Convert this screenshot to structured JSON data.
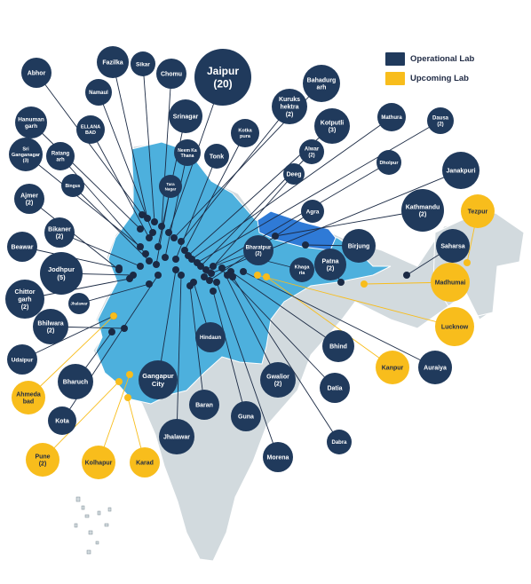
{
  "legend": {
    "operational": {
      "label": "Operational Lab",
      "color": "#203a5c"
    },
    "upcoming": {
      "label": "Upcoming Lab",
      "color": "#f8bd1c"
    }
  },
  "colors": {
    "region_highlight": "#4db0dd",
    "region_alt": "#2f7ad6",
    "land": "#d2dade",
    "land_border": "#ffffff",
    "leader_line": "#1b2a44",
    "dot": "#1b2a44"
  },
  "labs": [
    {
      "id": "abhor",
      "status": "operational",
      "lines": [
        "Abhor"
      ]
    },
    {
      "id": "fazilka",
      "status": "operational",
      "lines": [
        "Fazilka"
      ]
    },
    {
      "id": "sikar",
      "status": "operational",
      "lines": [
        "Sikar"
      ]
    },
    {
      "id": "chomu",
      "status": "operational",
      "lines": [
        "Chomu"
      ]
    },
    {
      "id": "jaipur",
      "status": "operational",
      "lines": [
        "Jaipur",
        "(20)"
      ]
    },
    {
      "id": "bahadurgarh",
      "status": "operational",
      "lines": [
        "Bahadurg",
        "arh"
      ]
    },
    {
      "id": "namaul",
      "status": "operational",
      "lines": [
        "Namaul"
      ]
    },
    {
      "id": "kurukshetra",
      "status": "operational",
      "lines": [
        "Kuruks",
        "hektra",
        "(2)"
      ]
    },
    {
      "id": "hanumangarh",
      "status": "operational",
      "lines": [
        "Hanuman",
        "garh"
      ]
    },
    {
      "id": "ellanabad",
      "status": "operational",
      "lines": [
        "ELLANA",
        "BAD"
      ]
    },
    {
      "id": "srinagar",
      "status": "operational",
      "lines": [
        "Srinagar"
      ]
    },
    {
      "id": "kotkapura",
      "status": "operational",
      "lines": [
        "Kotka",
        "pura"
      ]
    },
    {
      "id": "kotputli",
      "status": "operational",
      "lines": [
        "Kotputli",
        "(3)"
      ]
    },
    {
      "id": "mathura",
      "status": "operational",
      "lines": [
        "Mathura"
      ]
    },
    {
      "id": "dausa",
      "status": "operational",
      "lines": [
        "Dausa",
        "(2)"
      ]
    },
    {
      "id": "sriganganagar",
      "status": "operational",
      "lines": [
        "Sri",
        "Ganganagar",
        "(3)"
      ]
    },
    {
      "id": "ratangarh",
      "status": "operational",
      "lines": [
        "Ratang",
        "arh"
      ]
    },
    {
      "id": "neemkathana",
      "status": "operational",
      "lines": [
        "Neem Ka",
        "Thana"
      ]
    },
    {
      "id": "tonk",
      "status": "operational",
      "lines": [
        "Tonk"
      ]
    },
    {
      "id": "alwar",
      "status": "operational",
      "lines": [
        "Alwar",
        "(2)"
      ]
    },
    {
      "id": "dholpur",
      "status": "operational",
      "lines": [
        "Dholpur"
      ]
    },
    {
      "id": "janakpuri",
      "status": "operational",
      "lines": [
        "Janakpuri"
      ]
    },
    {
      "id": "bingus",
      "status": "operational",
      "lines": [
        "Bingus"
      ]
    },
    {
      "id": "taranagar",
      "status": "operational",
      "lines": [
        "Tara",
        "Nagar"
      ]
    },
    {
      "id": "deeg",
      "status": "operational",
      "lines": [
        "Deeg"
      ]
    },
    {
      "id": "ajmer",
      "status": "operational",
      "lines": [
        "Ajmer",
        "(2)"
      ]
    },
    {
      "id": "agra",
      "status": "operational",
      "lines": [
        "Agra"
      ]
    },
    {
      "id": "kathmandu",
      "status": "operational",
      "lines": [
        "Kathmandu",
        "(2)"
      ]
    },
    {
      "id": "tezpur",
      "status": "upcoming",
      "lines": [
        "Tezpur"
      ]
    },
    {
      "id": "bikaner",
      "status": "operational",
      "lines": [
        "Bikaner",
        "(2)"
      ]
    },
    {
      "id": "beawar",
      "status": "operational",
      "lines": [
        "Beawar"
      ]
    },
    {
      "id": "bharatpur",
      "status": "operational",
      "lines": [
        "Bharatpur",
        "(2)"
      ]
    },
    {
      "id": "birjung",
      "status": "operational",
      "lines": [
        "Birjung"
      ]
    },
    {
      "id": "saharsa",
      "status": "operational",
      "lines": [
        "Saharsa"
      ]
    },
    {
      "id": "jodhpur",
      "status": "operational",
      "lines": [
        "Jodhpur",
        "(5)"
      ]
    },
    {
      "id": "khagaria",
      "status": "operational",
      "lines": [
        "Khaga",
        "ria"
      ]
    },
    {
      "id": "patna",
      "status": "operational",
      "lines": [
        "Patna",
        "(2)"
      ]
    },
    {
      "id": "madhumai",
      "status": "upcoming",
      "lines": [
        "Madhumai"
      ]
    },
    {
      "id": "chittorgarh",
      "status": "operational",
      "lines": [
        "Chittor",
        "garh",
        "(2)"
      ]
    },
    {
      "id": "jhalawar_small",
      "status": "operational",
      "lines": [
        "Jhalawar"
      ]
    },
    {
      "id": "bhilwara",
      "status": "operational",
      "lines": [
        "Bhilwara",
        "(2)"
      ]
    },
    {
      "id": "lucknow",
      "status": "upcoming",
      "lines": [
        "Lucknow"
      ]
    },
    {
      "id": "hindaun",
      "status": "operational",
      "lines": [
        "Hindaun"
      ]
    },
    {
      "id": "udaipur",
      "status": "operational",
      "lines": [
        "Udaipur"
      ]
    },
    {
      "id": "bhind",
      "status": "operational",
      "lines": [
        "Bhind"
      ]
    },
    {
      "id": "kanpur",
      "status": "upcoming",
      "lines": [
        "Kanpur"
      ]
    },
    {
      "id": "auraiya",
      "status": "operational",
      "lines": [
        "Auraiya"
      ]
    },
    {
      "id": "bharuch",
      "status": "operational",
      "lines": [
        "Bharuch"
      ]
    },
    {
      "id": "gangapurcity",
      "status": "operational",
      "lines": [
        "Gangapur",
        "City"
      ]
    },
    {
      "id": "gwalior",
      "status": "operational",
      "lines": [
        "Gwalior",
        "(2)"
      ]
    },
    {
      "id": "ahmedabad",
      "status": "upcoming",
      "lines": [
        "Ahmeda",
        "bad"
      ]
    },
    {
      "id": "datia",
      "status": "operational",
      "lines": [
        "Datia"
      ]
    },
    {
      "id": "baran",
      "status": "operational",
      "lines": [
        "Baran"
      ]
    },
    {
      "id": "kota",
      "status": "operational",
      "lines": [
        "Kota"
      ]
    },
    {
      "id": "guna",
      "status": "operational",
      "lines": [
        "Guna"
      ]
    },
    {
      "id": "jhalawar",
      "status": "operational",
      "lines": [
        "Jhalawar"
      ]
    },
    {
      "id": "dabra",
      "status": "operational",
      "lines": [
        "Dabra"
      ]
    },
    {
      "id": "morena",
      "status": "operational",
      "lines": [
        "Morena"
      ]
    },
    {
      "id": "pune",
      "status": "upcoming",
      "lines": [
        "Pune",
        "(2)"
      ]
    },
    {
      "id": "kolhapur",
      "status": "upcoming",
      "lines": [
        "Kolhapur"
      ]
    },
    {
      "id": "karad",
      "status": "upcoming",
      "lines": [
        "Karad"
      ]
    }
  ]
}
